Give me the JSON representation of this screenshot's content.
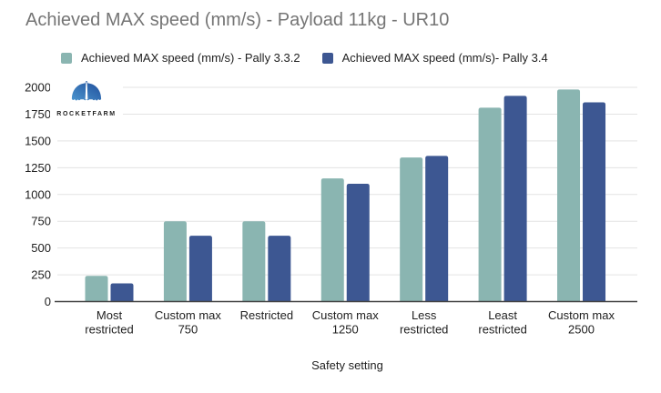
{
  "logo": {
    "text": "ROCKETFARM"
  },
  "chart_data": {
    "type": "bar",
    "title": "Achieved MAX speed (mm/s) - Payload 11kg - UR10",
    "categories": [
      "Most restricted",
      "Custom max 750",
      "Restricted",
      "Custom max 1250",
      "Less restricted",
      "Least restricted",
      "Custom max 2500"
    ],
    "series": [
      {
        "name": "Achieved MAX speed (mm/s) - Pally 3.3.2",
        "color": "#8AB5B1",
        "values": [
          240,
          750,
          750,
          1150,
          1345,
          1810,
          1980
        ]
      },
      {
        "name": "Achieved MAX speed (mm/s)- Pally 3.4",
        "color": "#3D5792",
        "values": [
          170,
          615,
          615,
          1100,
          1360,
          1920,
          1860
        ]
      }
    ],
    "xlabel": "Safety setting",
    "ylabel": "",
    "ylim": [
      0,
      2000
    ],
    "ytick_step": 250,
    "yticks": [
      0,
      250,
      500,
      750,
      1000,
      1250,
      1500,
      1750,
      2000
    ],
    "grid": true,
    "legend_position": "top"
  },
  "colors": {
    "title_text": "#757575",
    "axis_text": "#212121",
    "gridline": "#e3e3e3",
    "axis_line": "#424242",
    "background": "#ffffff"
  }
}
